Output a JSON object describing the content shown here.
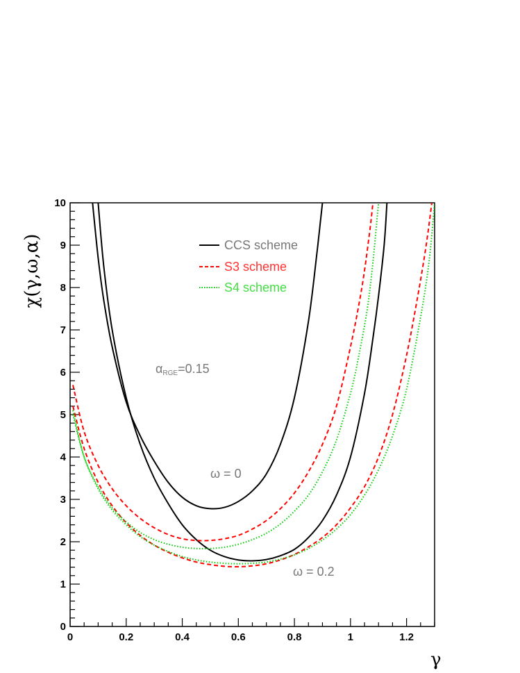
{
  "chart_data": {
    "type": "line",
    "xlabel": "γ",
    "ylabel": "χ(γ,ω,α)",
    "xlim": [
      0,
      1.3
    ],
    "ylim": [
      0,
      10
    ],
    "x_ticks": [
      "0",
      "0.2",
      "0.4",
      "0.6",
      "0.8",
      "1",
      "1.2"
    ],
    "x_tick_values": [
      0,
      0.2,
      0.4,
      0.6,
      0.8,
      1.0,
      1.2
    ],
    "y_ticks": [
      "0",
      "1",
      "2",
      "3",
      "4",
      "5",
      "6",
      "7",
      "8",
      "9",
      "10"
    ],
    "y_tick_values": [
      0,
      1,
      2,
      3,
      4,
      5,
      6,
      7,
      8,
      9,
      10
    ],
    "legend": [
      {
        "label": "CCS scheme",
        "color": "#000000",
        "style": "solid"
      },
      {
        "label": "S3 scheme",
        "color": "#ff0000",
        "style": "dashed"
      },
      {
        "label": "S4 scheme",
        "color": "#00cc00",
        "style": "dotted"
      }
    ],
    "legend_placement": "top-center",
    "annotations": {
      "alpha_symbol": "α",
      "alpha_sub": "RGE",
      "alpha_value": "=0.15",
      "omega0": "ω = 0",
      "omega02": "ω = 0.2"
    },
    "series": [
      {
        "scheme": "CCS",
        "omega": 0,
        "color": "#000000",
        "style": "solid",
        "x": [
          0.08,
          0.1,
          0.12,
          0.15,
          0.2,
          0.25,
          0.3,
          0.35,
          0.4,
          0.45,
          0.5,
          0.55,
          0.6,
          0.65,
          0.7,
          0.75,
          0.8,
          0.85,
          0.88,
          0.9
        ],
        "y": [
          10,
          8.7,
          7.7,
          6.6,
          5.3,
          4.5,
          3.9,
          3.4,
          3.05,
          2.85,
          2.78,
          2.81,
          2.95,
          3.2,
          3.6,
          4.3,
          5.4,
          7.2,
          8.8,
          10
        ]
      },
      {
        "scheme": "CCS",
        "omega": 0.2,
        "color": "#000000",
        "style": "solid",
        "x": [
          0.1,
          0.12,
          0.15,
          0.2,
          0.25,
          0.3,
          0.35,
          0.4,
          0.45,
          0.5,
          0.55,
          0.6,
          0.65,
          0.7,
          0.75,
          0.8,
          0.85,
          0.9,
          0.95,
          1.0,
          1.05,
          1.08,
          1.1,
          1.12,
          1.13
        ],
        "y": [
          10,
          8.5,
          7.0,
          5.4,
          4.3,
          3.5,
          2.9,
          2.4,
          2.05,
          1.8,
          1.65,
          1.57,
          1.55,
          1.58,
          1.67,
          1.82,
          2.1,
          2.5,
          3.1,
          4.0,
          5.5,
          6.8,
          7.8,
          9.0,
          10
        ]
      },
      {
        "scheme": "S3",
        "omega": 0,
        "color": "#ff0000",
        "style": "dashed",
        "x": [
          0.01,
          0.05,
          0.1,
          0.15,
          0.2,
          0.25,
          0.3,
          0.35,
          0.4,
          0.45,
          0.5,
          0.55,
          0.6,
          0.65,
          0.7,
          0.75,
          0.8,
          0.85,
          0.9,
          0.95,
          1.0,
          1.03,
          1.05,
          1.07,
          1.08
        ],
        "y": [
          5.7,
          4.6,
          3.8,
          3.25,
          2.85,
          2.55,
          2.33,
          2.17,
          2.07,
          2.03,
          2.03,
          2.07,
          2.15,
          2.3,
          2.5,
          2.78,
          3.15,
          3.65,
          4.3,
          5.2,
          6.6,
          7.6,
          8.4,
          9.4,
          10
        ]
      },
      {
        "scheme": "S3",
        "omega": 0.2,
        "color": "#ff0000",
        "style": "dashed",
        "x": [
          0.01,
          0.05,
          0.1,
          0.15,
          0.2,
          0.25,
          0.3,
          0.35,
          0.4,
          0.45,
          0.5,
          0.55,
          0.6,
          0.65,
          0.7,
          0.75,
          0.8,
          0.85,
          0.9,
          0.95,
          1.0,
          1.05,
          1.1,
          1.15,
          1.2,
          1.24,
          1.27,
          1.29
        ],
        "y": [
          5.2,
          4.2,
          3.4,
          2.85,
          2.45,
          2.15,
          1.92,
          1.75,
          1.62,
          1.52,
          1.46,
          1.42,
          1.41,
          1.43,
          1.48,
          1.57,
          1.7,
          1.88,
          2.1,
          2.4,
          2.8,
          3.3,
          4.0,
          5.0,
          6.4,
          7.8,
          9.0,
          10
        ]
      },
      {
        "scheme": "S4",
        "omega": 0,
        "color": "#00cc00",
        "style": "dotted",
        "x": [
          0.01,
          0.05,
          0.1,
          0.15,
          0.2,
          0.25,
          0.3,
          0.35,
          0.4,
          0.45,
          0.5,
          0.55,
          0.6,
          0.65,
          0.7,
          0.75,
          0.8,
          0.85,
          0.9,
          0.95,
          1.0,
          1.03,
          1.06,
          1.08,
          1.1
        ],
        "y": [
          5.1,
          4.0,
          3.3,
          2.8,
          2.47,
          2.22,
          2.05,
          1.94,
          1.87,
          1.84,
          1.84,
          1.87,
          1.94,
          2.05,
          2.2,
          2.42,
          2.72,
          3.1,
          3.65,
          4.4,
          5.5,
          6.4,
          7.5,
          8.6,
          10
        ]
      },
      {
        "scheme": "S4",
        "omega": 0.2,
        "color": "#00cc00",
        "style": "dotted",
        "x": [
          0.01,
          0.05,
          0.1,
          0.15,
          0.2,
          0.25,
          0.3,
          0.35,
          0.4,
          0.45,
          0.5,
          0.55,
          0.6,
          0.65,
          0.7,
          0.75,
          0.8,
          0.85,
          0.9,
          0.95,
          1.0,
          1.05,
          1.1,
          1.15,
          1.2,
          1.25,
          1.28,
          1.3
        ],
        "y": [
          5.0,
          4.0,
          3.25,
          2.75,
          2.4,
          2.12,
          1.92,
          1.77,
          1.65,
          1.57,
          1.52,
          1.49,
          1.48,
          1.49,
          1.52,
          1.59,
          1.69,
          1.84,
          2.04,
          2.3,
          2.64,
          3.1,
          3.7,
          4.5,
          5.6,
          7.3,
          8.6,
          10
        ]
      }
    ]
  }
}
